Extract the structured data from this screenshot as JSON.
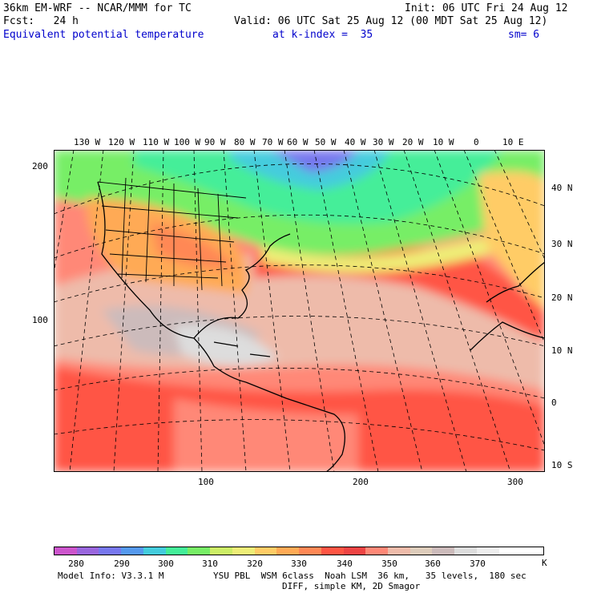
{
  "header": {
    "model": "36km EM-WRF -- NCAR/MMM for TC",
    "init": "Init: 06 UTC Fri 24 Aug 12",
    "fcst": "Fcst:   24 h",
    "valid": "Valid: 06 UTC Sat 25 Aug 12 (00 MDT Sat 25 Aug 12)",
    "field": "Equivalent potential temperature",
    "level": "at k-index =  35",
    "smooth": "sm= 6"
  },
  "axes": {
    "top_lon": [
      "130 W",
      "120 W",
      "110 W",
      "100 W",
      "90 W",
      "80 W",
      "70 W",
      "60 W",
      "50 W",
      "40 W",
      "30 W",
      "20 W",
      "10 W",
      "0",
      "10 E"
    ],
    "right_lat": [
      "40 N",
      "30 N",
      "20 N",
      "10 N",
      "0",
      "10 S"
    ],
    "left_y": [
      "200",
      "100"
    ],
    "bottom_x": [
      "100",
      "200",
      "300"
    ]
  },
  "legend": {
    "labels": [
      "280",
      "290",
      "300",
      "310",
      "320",
      "330",
      "340",
      "350",
      "360",
      "370"
    ],
    "unit": "K",
    "colors": [
      "#cc55cc",
      "#9966dd",
      "#7777ee",
      "#5599ee",
      "#44ccdd",
      "#44ee99",
      "#77ee66",
      "#ccee66",
      "#eeee77",
      "#ffcc66",
      "#ffaa55",
      "#ff8855",
      "#ff5544",
      "#ee4444",
      "#ff8877",
      "#eebbaa",
      "#ddccbb",
      "#ccbbbb",
      "#dddddd",
      "#eeeeee",
      "#ffffff",
      "#ffffff"
    ]
  },
  "footer": {
    "info": "Model Info: V3.3.1 M",
    "physics": "YSU PBL  WSM 6class  Noah LSM  36 km,   35 levels,  180 sec",
    "diff": "DIFF, simple KM, 2D Smagor"
  }
}
